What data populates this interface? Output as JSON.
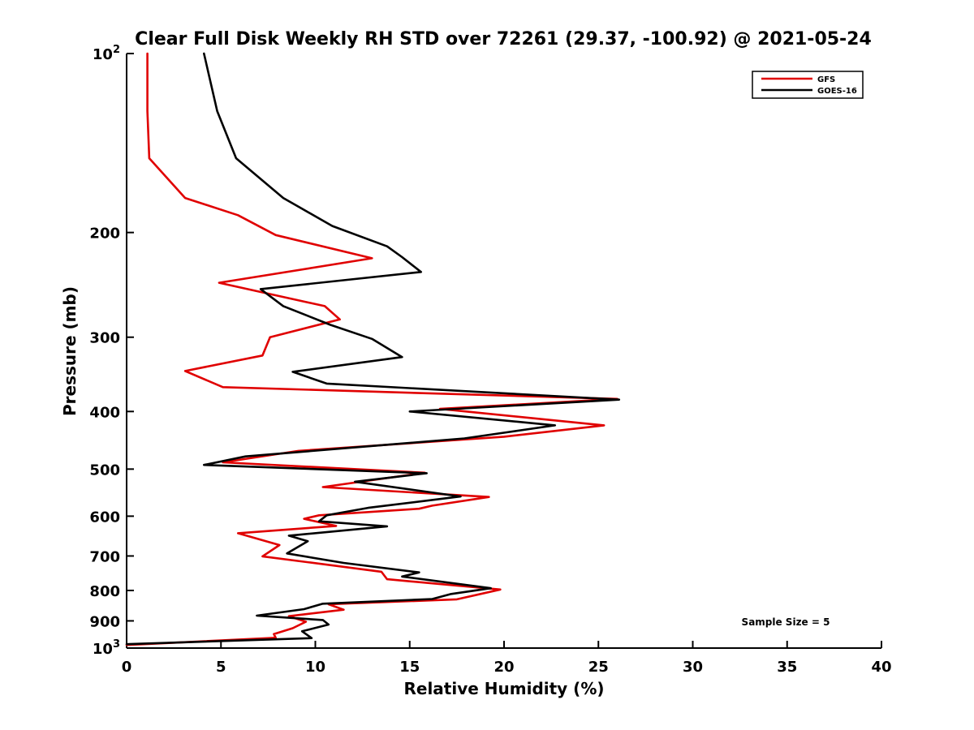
{
  "chart_data": {
    "type": "line",
    "title": "Clear Full Disk Weekly RH STD over 72261 (29.37, -100.92) @ 2021-05-24",
    "xlabel": "Relative Humidity (%)",
    "ylabel": "Pressure (mb)",
    "xlim": [
      0,
      40
    ],
    "ylim": [
      100,
      1000
    ],
    "y_scale": "log",
    "y_reversed": true,
    "grid": false,
    "legend_position": "top-right",
    "x_ticks": [
      0,
      5,
      10,
      15,
      20,
      25,
      30,
      35,
      40
    ],
    "x_tick_labels": [
      "0",
      "5",
      "10",
      "15",
      "20",
      "25",
      "30",
      "35",
      "40"
    ],
    "y_ticks": [
      200,
      300,
      400,
      500,
      600,
      700,
      800,
      900
    ],
    "y_tick_labels": [
      "200",
      "300",
      "400",
      "500",
      "600",
      "700",
      "800",
      "900"
    ],
    "y_tick_top": {
      "base": "10",
      "exp": "2"
    },
    "y_tick_bottom": {
      "base": "10",
      "exp": "3"
    },
    "annotation": "Sample Size = 5",
    "series": [
      {
        "name": "GFS",
        "color": "#e00000",
        "points": [
          [
            1.1,
            100
          ],
          [
            1.1,
            125
          ],
          [
            1.2,
            150
          ],
          [
            3.1,
            175
          ],
          [
            5.9,
            187
          ],
          [
            7.9,
            202
          ],
          [
            13.0,
            221
          ],
          [
            4.9,
            243
          ],
          [
            10.5,
            266
          ],
          [
            11.3,
            280
          ],
          [
            7.6,
            300
          ],
          [
            7.2,
            322
          ],
          [
            3.1,
            342
          ],
          [
            5.1,
            364
          ],
          [
            26.0,
            381
          ],
          [
            16.6,
            396
          ],
          [
            25.3,
            422
          ],
          [
            20.0,
            441
          ],
          [
            9.1,
            466
          ],
          [
            5.1,
            487
          ],
          [
            15.8,
            507
          ],
          [
            10.4,
            536
          ],
          [
            19.2,
            557
          ],
          [
            16.2,
            576
          ],
          [
            15.5,
            583
          ],
          [
            10.2,
            598
          ],
          [
            9.4,
            606
          ],
          [
            11.1,
            623
          ],
          [
            5.9,
            641
          ],
          [
            8.1,
            671
          ],
          [
            7.2,
            701
          ],
          [
            13.5,
            744
          ],
          [
            13.8,
            766
          ],
          [
            19.8,
            797
          ],
          [
            17.5,
            828
          ],
          [
            10.7,
            844
          ],
          [
            11.5,
            862
          ],
          [
            8.6,
            884
          ],
          [
            9.5,
            903
          ],
          [
            8.8,
            926
          ],
          [
            7.8,
            947
          ],
          [
            7.9,
            961
          ],
          [
            0.0,
            988
          ]
        ]
      },
      {
        "name": "GOES-16",
        "color": "#000000",
        "points": [
          [
            4.1,
            100
          ],
          [
            4.8,
            125
          ],
          [
            5.8,
            150
          ],
          [
            8.3,
            175
          ],
          [
            10.9,
            195
          ],
          [
            13.8,
            211
          ],
          [
            14.6,
            220
          ],
          [
            15.6,
            233
          ],
          [
            7.1,
            249
          ],
          [
            8.3,
            266
          ],
          [
            10.8,
            286
          ],
          [
            13.0,
            302
          ],
          [
            14.6,
            324
          ],
          [
            8.8,
            343
          ],
          [
            10.6,
            359
          ],
          [
            26.1,
            382
          ],
          [
            15.0,
            400
          ],
          [
            22.7,
            422
          ],
          [
            17.9,
            444
          ],
          [
            6.3,
            476
          ],
          [
            4.1,
            492
          ],
          [
            15.9,
            508
          ],
          [
            12.1,
            525
          ],
          [
            17.7,
            556
          ],
          [
            12.8,
            581
          ],
          [
            10.6,
            598
          ],
          [
            10.2,
            612
          ],
          [
            13.8,
            624
          ],
          [
            8.6,
            647
          ],
          [
            9.6,
            661
          ],
          [
            8.5,
            693
          ],
          [
            11.5,
            719
          ],
          [
            15.5,
            746
          ],
          [
            14.6,
            758
          ],
          [
            19.3,
            793
          ],
          [
            17.2,
            811
          ],
          [
            16.2,
            827
          ],
          [
            10.4,
            842
          ],
          [
            9.4,
            860
          ],
          [
            6.9,
            882
          ],
          [
            10.4,
            897
          ],
          [
            10.7,
            913
          ],
          [
            9.3,
            937
          ],
          [
            9.8,
            962
          ],
          [
            0.0,
            985
          ]
        ]
      }
    ]
  }
}
